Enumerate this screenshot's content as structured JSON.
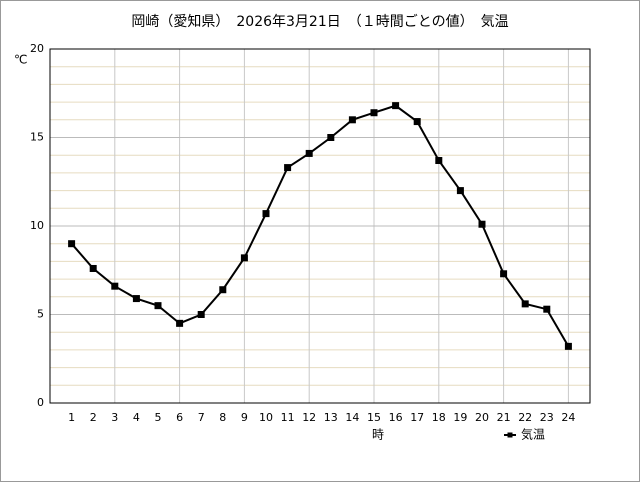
{
  "chart_data": {
    "type": "line",
    "title": "岡崎（愛知県）　2026年3月21日　（１時間ごとの値）　気温",
    "y_label": "℃",
    "x_label": "時",
    "categories": [
      "1",
      "2",
      "3",
      "4",
      "5",
      "6",
      "7",
      "8",
      "9",
      "10",
      "11",
      "12",
      "13",
      "14",
      "15",
      "16",
      "17",
      "18",
      "19",
      "20",
      "21",
      "22",
      "23",
      "24"
    ],
    "series": [
      {
        "name": "気温",
        "color": "#000000",
        "values": [
          9.0,
          7.6,
          6.6,
          5.9,
          5.5,
          4.5,
          5.0,
          6.4,
          8.2,
          10.7,
          13.3,
          14.1,
          15.0,
          16.0,
          16.4,
          16.8,
          15.9,
          13.7,
          12.0,
          10.1,
          7.3,
          5.6,
          5.3,
          3.2
        ]
      }
    ],
    "ylim": [
      0,
      20
    ],
    "yticks": [
      0,
      5,
      10,
      15,
      20
    ],
    "grid": true,
    "minor_grid_step": 1,
    "x_grid_every": 3,
    "legend": "bottom-right"
  }
}
